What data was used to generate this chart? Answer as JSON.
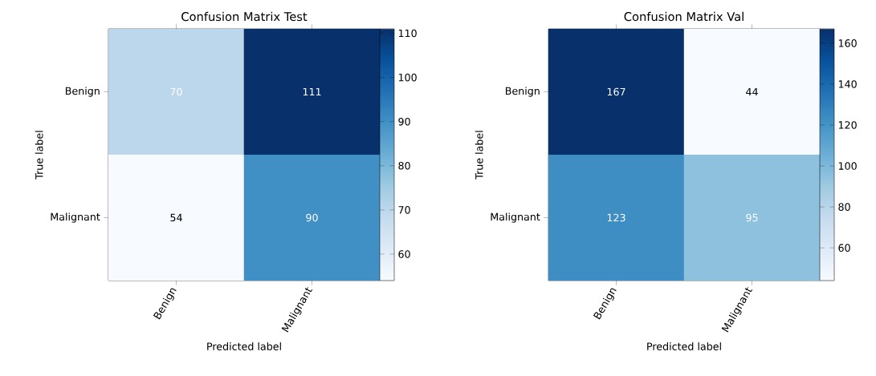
{
  "chart_data": [
    {
      "type": "heatmap",
      "title": "Confusion Matrix Test",
      "xlabel": "Predicted label",
      "ylabel": "True label",
      "categories": [
        "Benign",
        "Malignant"
      ],
      "y_categories": [
        "Benign",
        "Malignant"
      ],
      "cells": [
        [
          70,
          111
        ],
        [
          54,
          90
        ]
      ],
      "data_labels": true,
      "clim": [
        54,
        111
      ],
      "cticks": [
        60,
        70,
        80,
        90,
        100,
        110
      ]
    },
    {
      "type": "heatmap",
      "title": "Confusion Matrix Val",
      "xlabel": "Predicted label",
      "ylabel": "True label",
      "categories": [
        "Benign",
        "Malignant"
      ],
      "y_categories": [
        "Benign",
        "Malignant"
      ],
      "cells": [
        [
          167,
          44
        ],
        [
          123,
          95
        ]
      ],
      "data_labels": true,
      "clim": [
        44,
        167
      ],
      "cticks": [
        60,
        80,
        100,
        120,
        140,
        160
      ]
    }
  ]
}
